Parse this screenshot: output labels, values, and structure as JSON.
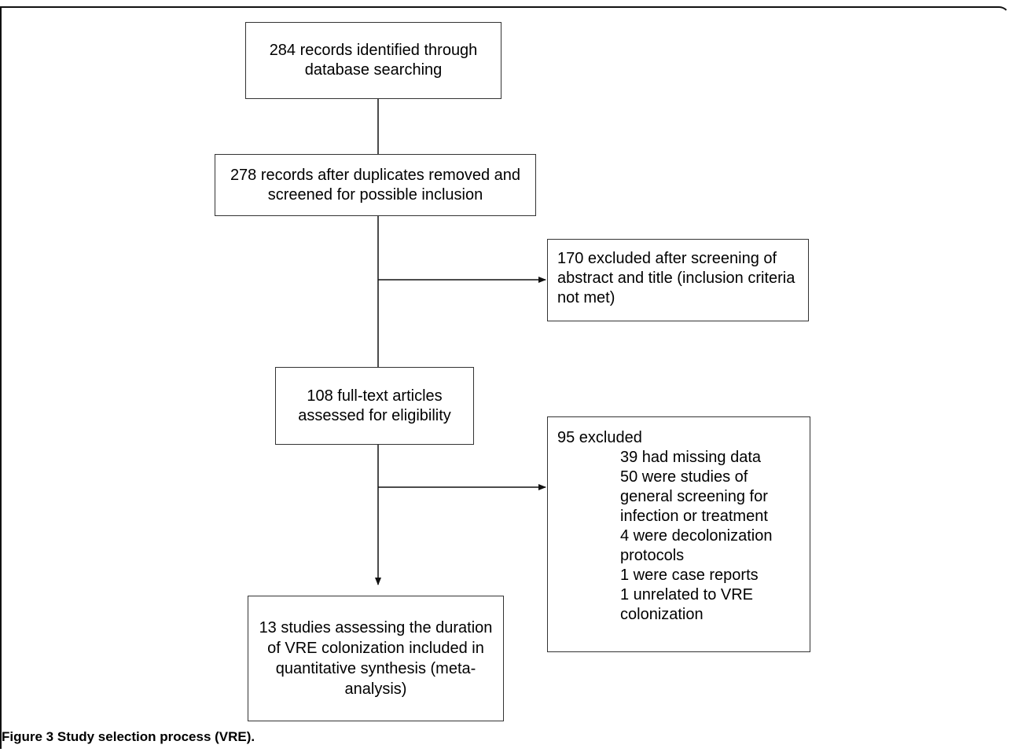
{
  "boxes": {
    "identified": "284 records identified through database searching",
    "screened": "278 records after duplicates removed and screened for possible inclusion",
    "excluded_abstract": "170 excluded after screening of abstract and title (inclusion criteria not met)",
    "fulltext": "108 full-text articles assessed for eligibility",
    "included": "13 studies assessing the duration of VRE colonization included in quantitative synthesis (meta-analysis)"
  },
  "excluded_fulltext": {
    "header": "95 excluded",
    "reasons": [
      "39 had missing data",
      "50 were studies of general screening for infection or treatment",
      "4 were decolonization protocols",
      "1 were case reports",
      "1 unrelated to VRE colonization"
    ]
  },
  "caption": {
    "label": "Figure 3",
    "text": "Study selection process (VRE)."
  }
}
